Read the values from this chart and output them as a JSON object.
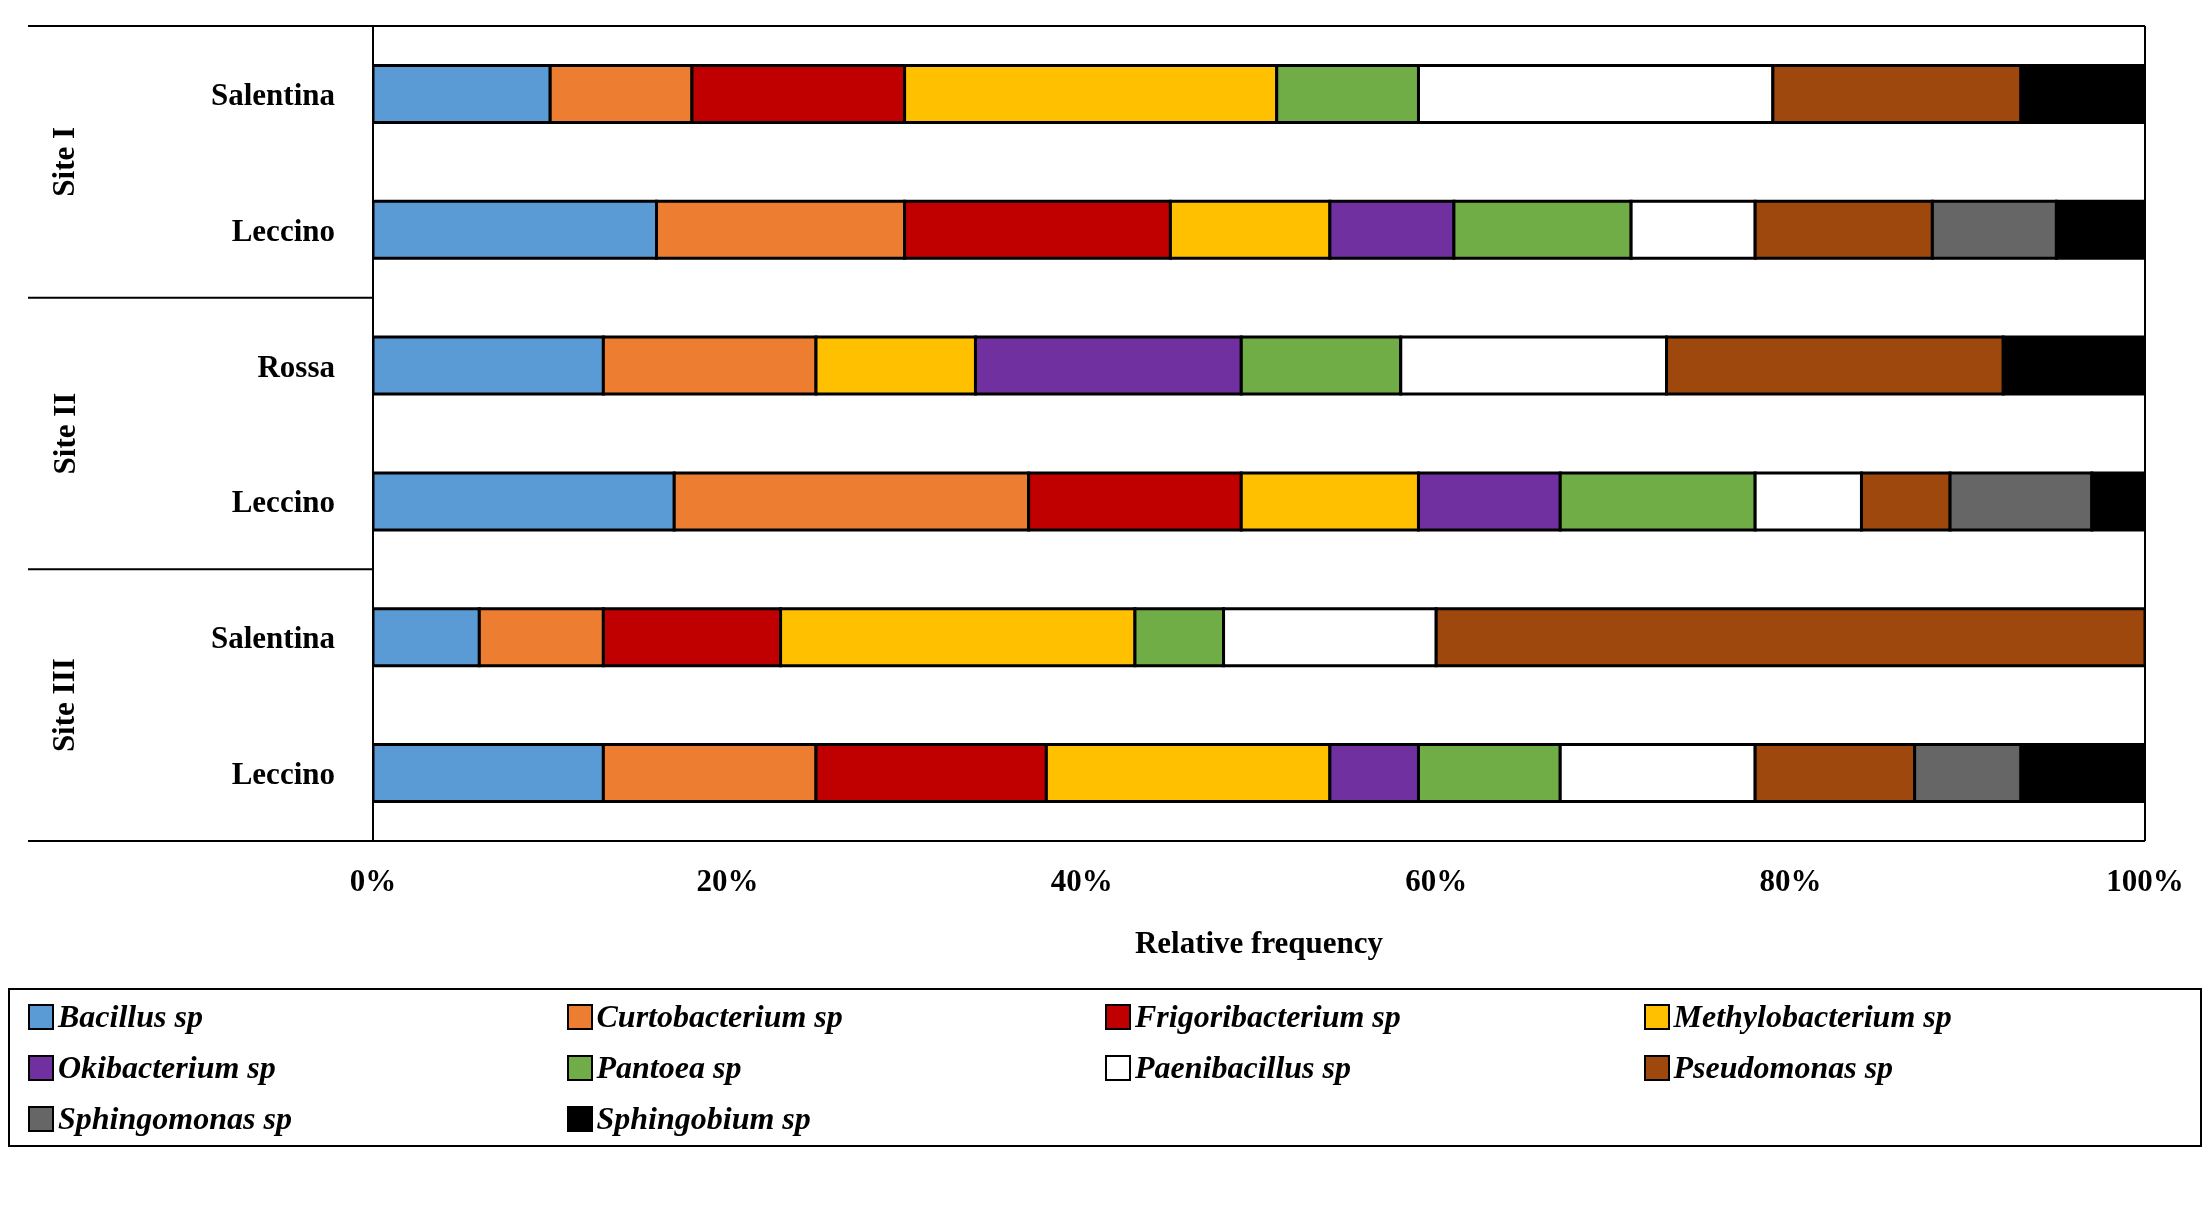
{
  "chart_data": {
    "type": "bar",
    "orientation": "horizontal",
    "stacked": true,
    "xlabel": "Relative frequency",
    "categories": [
      "Salentina",
      "Leccino",
      "Rossa",
      "Leccino",
      "Salentina",
      "Leccino"
    ],
    "annotations": [
      "Site I",
      "Site II",
      "Site III"
    ],
    "xlim": [
      0,
      100
    ],
    "xticks": [
      {
        "value": 0,
        "label": "0%"
      },
      {
        "value": 20,
        "label": "20%"
      },
      {
        "value": 40,
        "label": "40%"
      },
      {
        "value": 60,
        "label": "60%"
      },
      {
        "value": 80,
        "label": "80%"
      },
      {
        "value": 100,
        "label": "100%"
      }
    ],
    "legend": "bottom",
    "series": [
      {
        "name": "Bacillus sp",
        "color": "#5b9bd5",
        "values": [
          10,
          16,
          13,
          17,
          6,
          13
        ]
      },
      {
        "name": "Curtobacterium sp",
        "color": "#ed7d31",
        "values": [
          8,
          14,
          12,
          20,
          7,
          12
        ]
      },
      {
        "name": "Frigoribacterium sp",
        "color": "#c00000",
        "values": [
          12,
          15,
          0,
          12,
          10,
          13
        ]
      },
      {
        "name": "Methylobacterium sp",
        "color": "#ffc000",
        "values": [
          21,
          9,
          9,
          10,
          20,
          16
        ]
      },
      {
        "name": "Okibacterium sp",
        "color": "#7030a0",
        "values": [
          0,
          7,
          15,
          8,
          0,
          5
        ]
      },
      {
        "name": "Pantoea sp",
        "color": "#70ad47",
        "values": [
          8,
          10,
          9,
          11,
          5,
          8
        ]
      },
      {
        "name": "Paenibacillus sp",
        "color": "#ffffff",
        "values": [
          20,
          7,
          15,
          6,
          12,
          11
        ]
      },
      {
        "name": "Pseudomonas sp",
        "color": "#9e480e",
        "values": [
          14,
          10,
          19,
          5,
          40,
          9
        ]
      },
      {
        "name": "Sphingomonas sp",
        "color": "#666666",
        "values": [
          0,
          7,
          0,
          8,
          0,
          6
        ]
      },
      {
        "name": "Sphingobium sp",
        "color": "#000000",
        "values": [
          7,
          5,
          8,
          3,
          0,
          7
        ]
      }
    ]
  }
}
